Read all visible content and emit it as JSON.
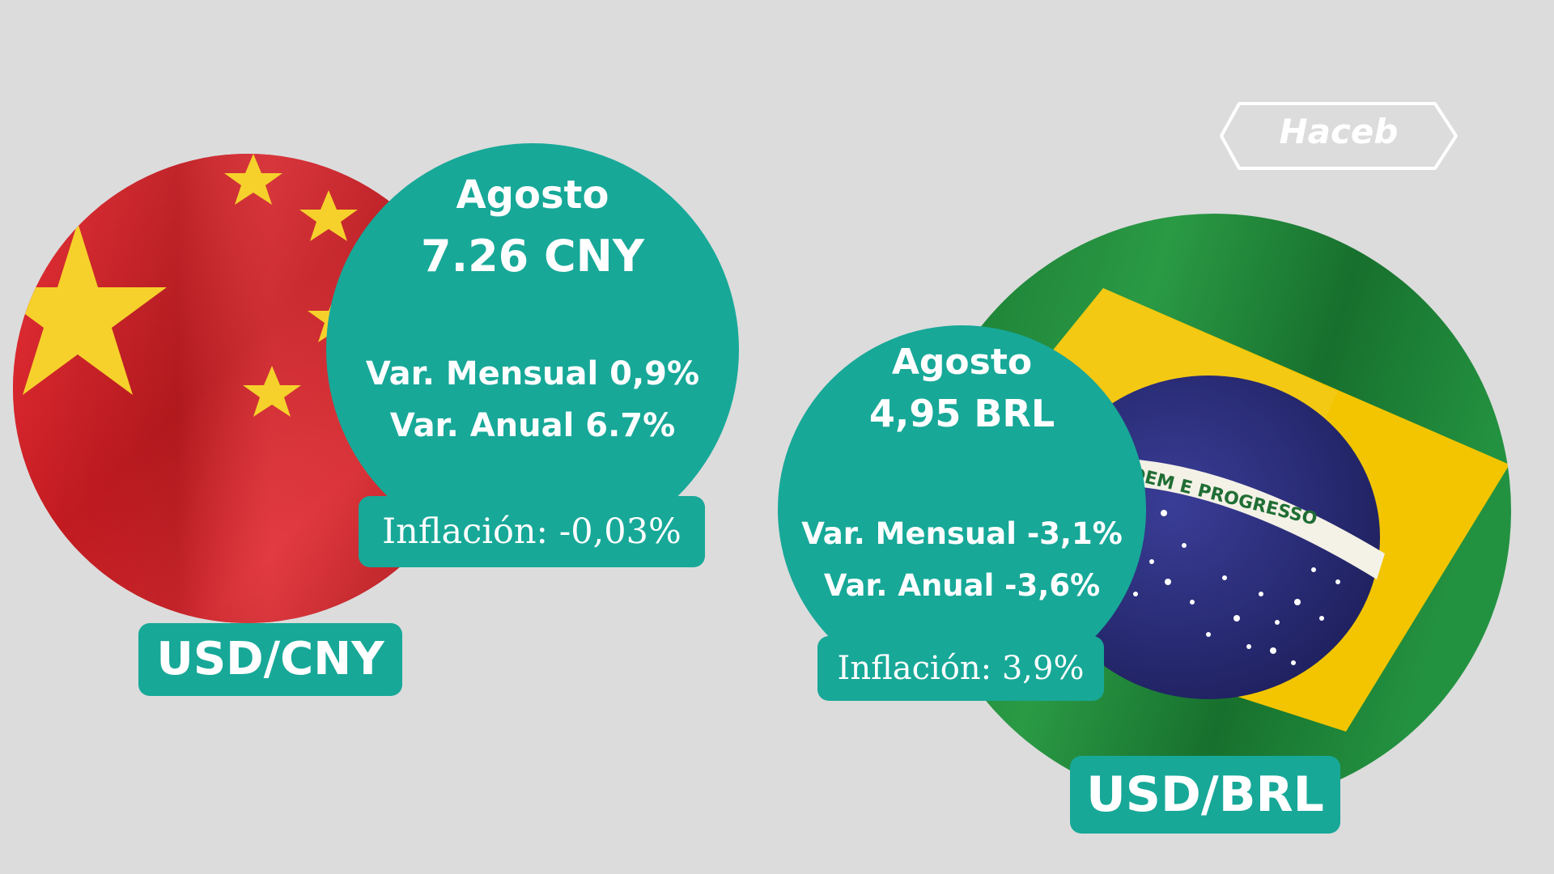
{
  "logo": {
    "text": "Haceb"
  },
  "china": {
    "pair_label": "USD/CNY",
    "month": "Agosto",
    "rate": "7.26 CNY",
    "monthly_var": "Var. Mensual 0,9%",
    "annual_var": "Var. Anual 6.7%",
    "inflation": "Inflación: -0,03%",
    "flag_colors": {
      "field": "#d8242a",
      "stars": "#f6d12b"
    }
  },
  "brazil": {
    "pair_label": "USD/BRL",
    "month": "Agosto",
    "rate": "4,95 BRL",
    "monthly_var": "Var. Mensual -3,1%",
    "annual_var": "Var. Anual -3,6%",
    "inflation": "Inflación: 3,9%",
    "flag_banner_text": "ORDEM E PROGRESSO",
    "flag_colors": {
      "field": "#1f8a3a",
      "diamond": "#f2c500",
      "globe": "#2a2c78"
    }
  },
  "colors": {
    "accent": "#17a898",
    "background": "#dcdcdc",
    "text": "#ffffff"
  }
}
